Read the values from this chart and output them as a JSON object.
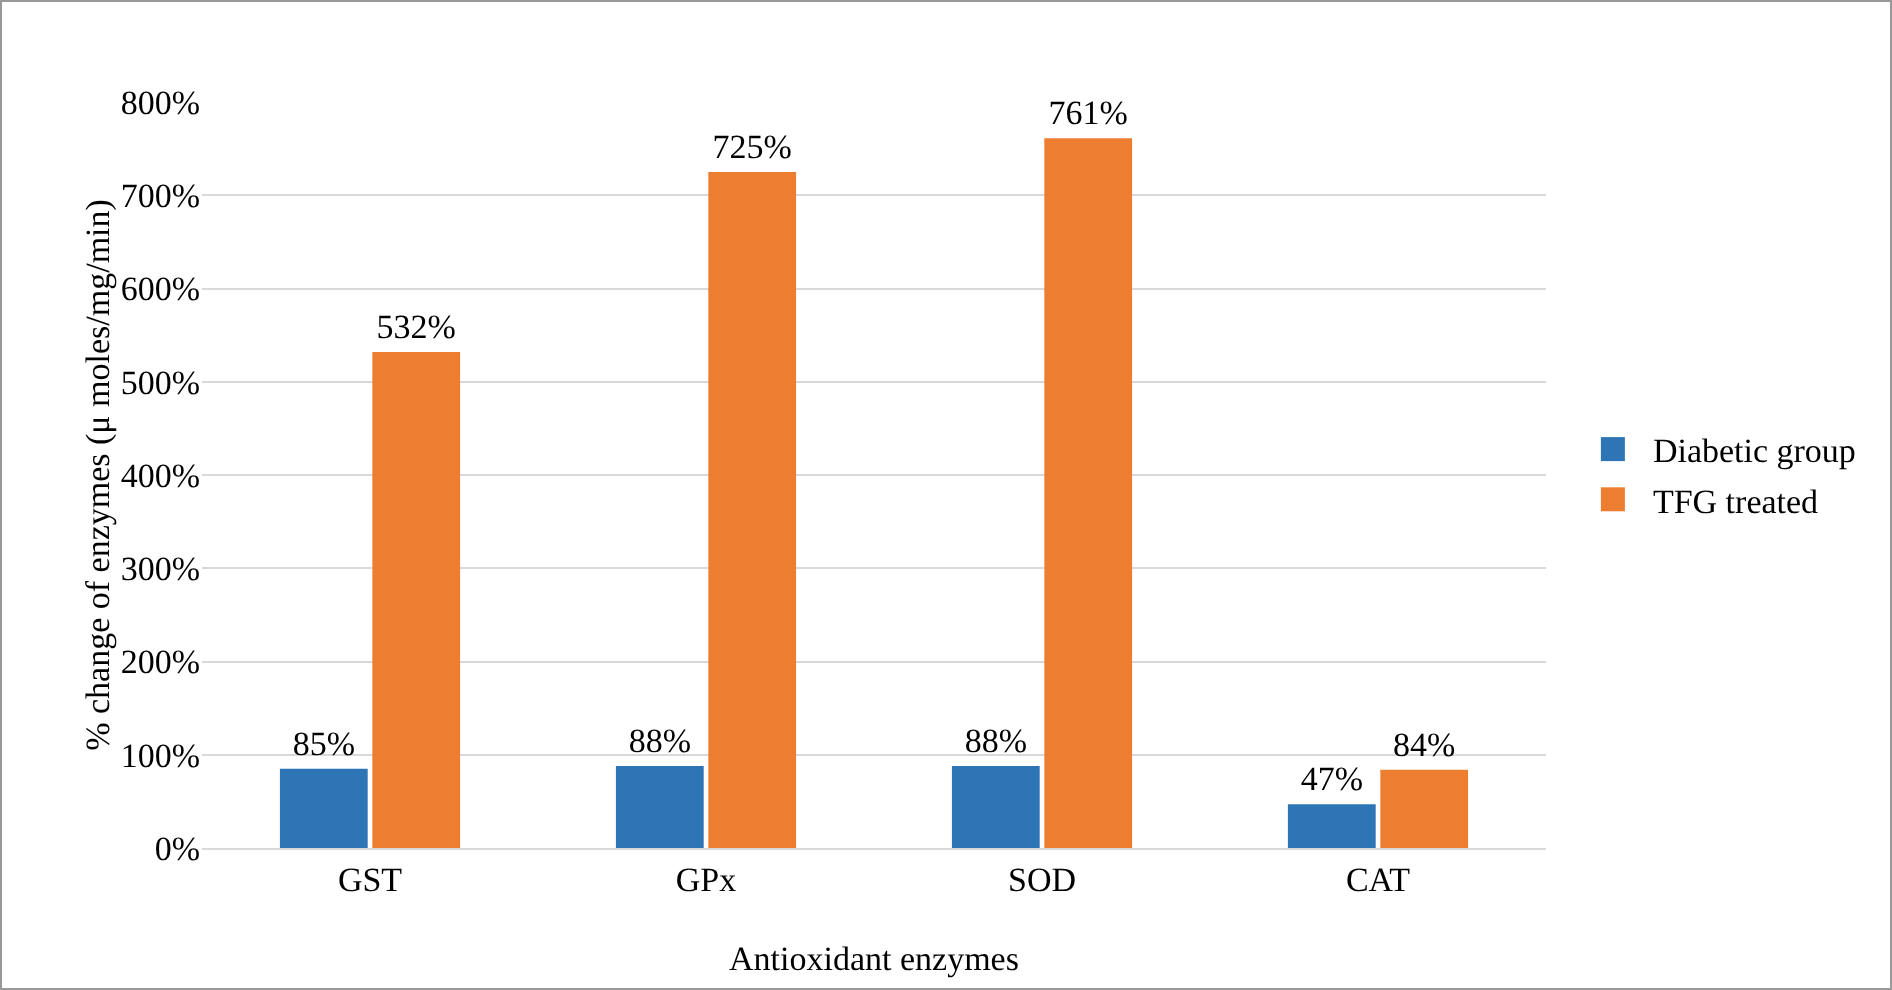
{
  "chart_data": {
    "type": "bar",
    "xlabel": "Antioxidant enzymes",
    "ylabel": "% change of enzymes (μ moles/mg/min)",
    "categories": [
      "GST",
      "GPx",
      "SOD",
      "CAT"
    ],
    "series": [
      {
        "name": "Diabetic group",
        "color": "#2e75b6",
        "values": [
          85,
          88,
          88,
          47
        ],
        "value_labels": [
          "85%",
          "88%",
          "88%",
          "47%"
        ]
      },
      {
        "name": "TFG treated",
        "color": "#ed7d31",
        "values": [
          532,
          725,
          761,
          84
        ],
        "value_labels": [
          "532%",
          "725%",
          "761%",
          "84%"
        ]
      }
    ],
    "ylim": [
      0,
      800
    ],
    "yticks": [
      {
        "value": 0,
        "label": "0%"
      },
      {
        "value": 100,
        "label": "100%"
      },
      {
        "value": 200,
        "label": "200%"
      },
      {
        "value": 300,
        "label": "300%"
      },
      {
        "value": 400,
        "label": "400%"
      },
      {
        "value": 500,
        "label": "500%"
      },
      {
        "value": 600,
        "label": "600%"
      },
      {
        "value": 700,
        "label": "700%"
      },
      {
        "value": 800,
        "label": "800%"
      }
    ],
    "grid": "y",
    "legend": "right"
  }
}
